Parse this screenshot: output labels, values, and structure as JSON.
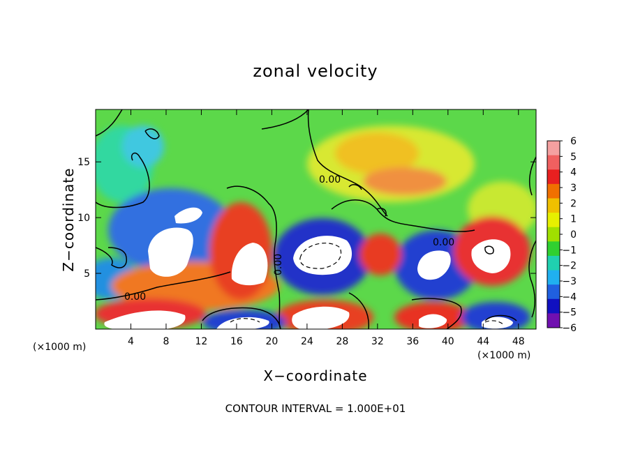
{
  "chart_data": {
    "type": "heatmap",
    "title": "zonal velocity",
    "xlabel": "X−coordinate",
    "ylabel": "Z−coordinate",
    "x_unit": "(×1000 m)",
    "footer": "CONTOUR INTERVAL = 1.000E+01",
    "x_ticks": [
      "4",
      "8",
      "12",
      "16",
      "20",
      "24",
      "28",
      "32",
      "36",
      "40",
      "44",
      "48"
    ],
    "y_ticks": [
      "5",
      "10",
      "15"
    ],
    "xlim": [
      0,
      50
    ],
    "ylim": [
      0,
      19.7
    ],
    "contour_label": "0.00",
    "colorbar": {
      "ticks": [
        "6",
        "5",
        "4",
        "3",
        "2",
        "1",
        "0",
        "−1",
        "−2",
        "−3",
        "−4",
        "−5",
        "−6"
      ],
      "colors": [
        "#f4a0a0",
        "#f06060",
        "#e82020",
        "#f07000",
        "#f0c000",
        "#e6f000",
        "#a0e000",
        "#30d030",
        "#20d0b0",
        "#20b0f0",
        "#2060e0",
        "#1010c0",
        "#7010b0"
      ]
    }
  }
}
